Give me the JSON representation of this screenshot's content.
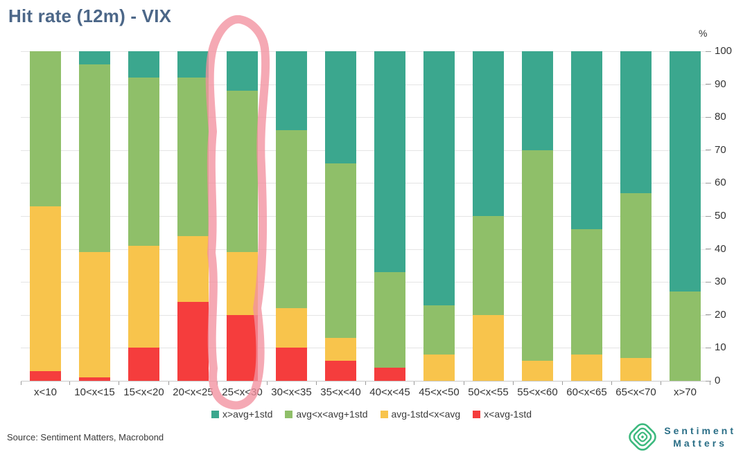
{
  "title": "Hit rate (12m) - VIX",
  "unit_label": "%",
  "source_note": "Source: Sentiment Matters, Macrobond",
  "logo": {
    "line1": "Sentiment",
    "line2": "Matters",
    "icon": "concentric-diamond-icon",
    "icon_color": "#3cb97e",
    "text_color": "#2a6e86"
  },
  "colors": {
    "title": "#4c6788",
    "teal": "#3ba78e",
    "green": "#8fbf69",
    "yellow": "#f8c44c",
    "red": "#f53d3d",
    "annotation_pink": "#f2919f",
    "gridline": "#e4e4e4",
    "axis_text": "#333333"
  },
  "annotation": {
    "type": "hand-drawn-circle",
    "target_category": "25<x<30",
    "color": "#f2919f"
  },
  "chart_data": {
    "type": "bar",
    "stacked": true,
    "title": "Hit rate (12m) - VIX",
    "xlabel": "",
    "ylabel": "%",
    "ylim": [
      0,
      100
    ],
    "yticks": [
      0,
      10,
      20,
      30,
      40,
      50,
      60,
      70,
      80,
      90,
      100
    ],
    "grid": true,
    "legend_position": "bottom",
    "categories": [
      "x<10",
      "10<x<15",
      "15<x<20",
      "20<x<25",
      "25<x<30",
      "30<x<35",
      "35<x<40",
      "40<x<45",
      "45<x<50",
      "50<x<55",
      "55<x<60",
      "60<x<65",
      "65<x<70",
      "x>70"
    ],
    "series": [
      {
        "name": "x>avg+1std",
        "color": "#3ba78e",
        "values": [
          0,
          4,
          8,
          8,
          12,
          24,
          34,
          67,
          77,
          50,
          30,
          54,
          43,
          73
        ]
      },
      {
        "name": "avg<x<avg+1std",
        "color": "#8fbf69",
        "values": [
          47,
          57,
          51,
          48,
          49,
          54,
          53,
          29,
          15,
          30,
          64,
          38,
          50,
          27
        ]
      },
      {
        "name": "avg-1std<x<avg",
        "color": "#f8c44c",
        "values": [
          50,
          38,
          31,
          20,
          19,
          12,
          7,
          0,
          8,
          20,
          6,
          8,
          7,
          0
        ]
      },
      {
        "name": "x<avg-1std",
        "color": "#f53d3d",
        "values": [
          3,
          1,
          10,
          24,
          20,
          10,
          6,
          4,
          0,
          0,
          0,
          0,
          0,
          0
        ]
      }
    ]
  }
}
